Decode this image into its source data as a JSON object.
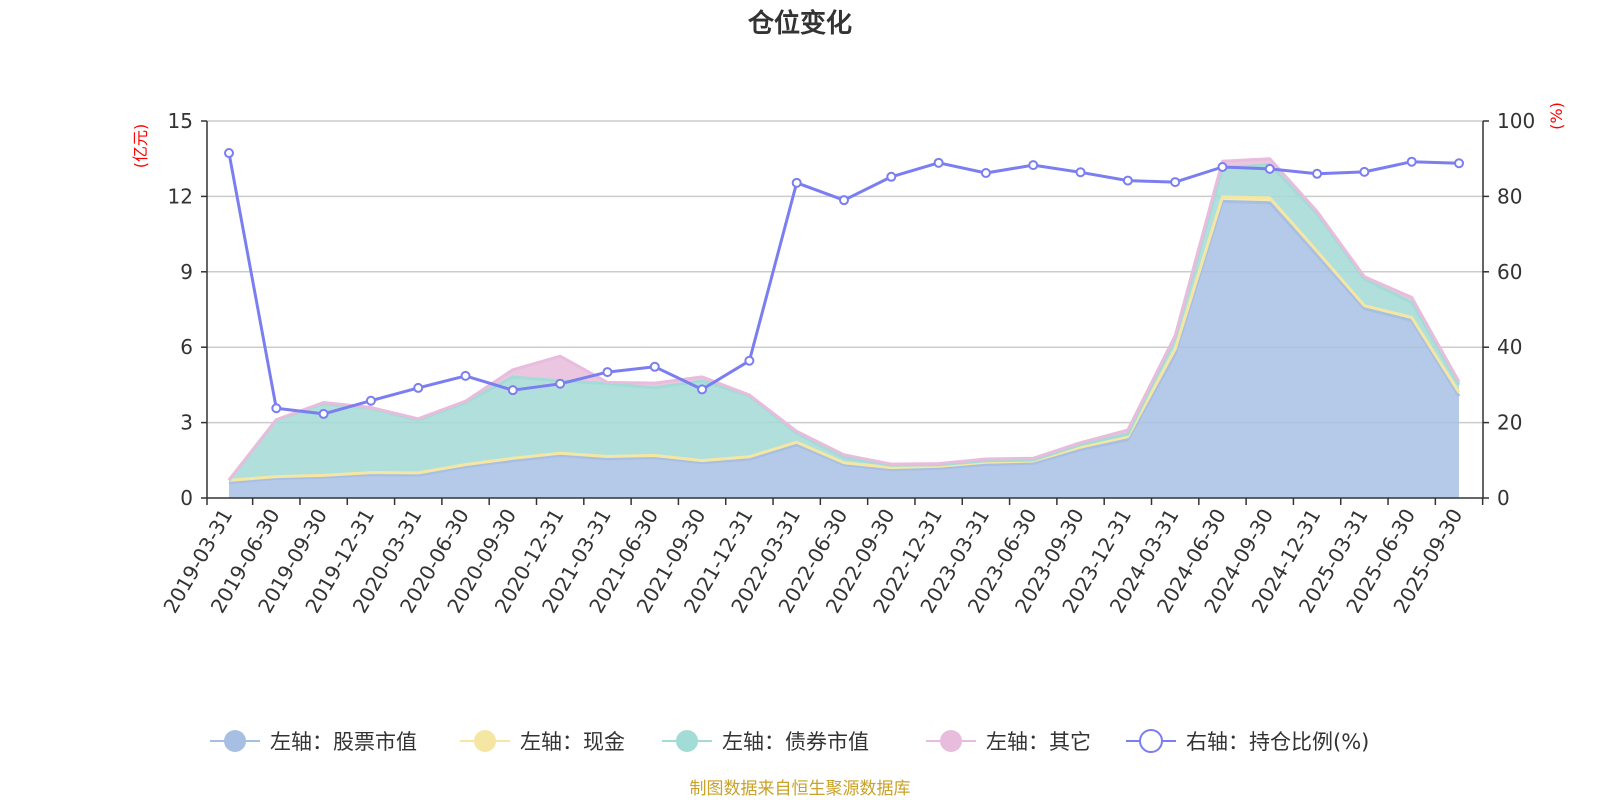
{
  "chart_data": {
    "type": "area",
    "title": "仓位变化",
    "left_unit": "(亿元)",
    "right_unit": "(%)",
    "left_axis": {
      "min": 0,
      "max": 15,
      "ticks": [
        "0",
        "3",
        "6",
        "9",
        "12",
        "15"
      ]
    },
    "right_axis": {
      "min": 0,
      "max": 100,
      "ticks": [
        "0",
        "20",
        "40",
        "60",
        "80",
        "100"
      ]
    },
    "grid": true,
    "legend_position": "bottom",
    "categories": [
      "2019-03-31",
      "2019-06-30",
      "2019-09-30",
      "2019-12-31",
      "2020-03-31",
      "2020-06-30",
      "2020-09-30",
      "2020-12-31",
      "2021-03-31",
      "2021-06-30",
      "2021-09-30",
      "2021-12-31",
      "2022-03-31",
      "2022-06-30",
      "2022-09-30",
      "2022-12-31",
      "2023-03-31",
      "2023-06-30",
      "2023-09-30",
      "2023-12-31",
      "2024-03-31",
      "2024-06-30",
      "2024-09-30",
      "2024-12-31",
      "2025-03-31",
      "2025-06-30",
      "2025-09-30"
    ],
    "series": [
      {
        "name": "左轴：股票市值",
        "axis": "left",
        "kind": "stack",
        "color": "#a8bfe4",
        "values": [
          0.62,
          0.78,
          0.83,
          0.93,
          0.91,
          1.25,
          1.48,
          1.69,
          1.56,
          1.61,
          1.41,
          1.54,
          2.12,
          1.32,
          1.13,
          1.18,
          1.33,
          1.38,
          1.92,
          2.32,
          5.73,
          11.8,
          11.75,
          9.66,
          7.53,
          7.07,
          4.05
        ]
      },
      {
        "name": "左轴：现金",
        "axis": "left",
        "kind": "stack",
        "color": "#f5e6a3",
        "values": [
          0.08,
          0.07,
          0.07,
          0.08,
          0.09,
          0.08,
          0.1,
          0.09,
          0.09,
          0.08,
          0.08,
          0.1,
          0.1,
          0.08,
          0.08,
          0.08,
          0.09,
          0.09,
          0.1,
          0.12,
          0.2,
          0.18,
          0.19,
          0.15,
          0.12,
          0.11,
          0.15
        ]
      },
      {
        "name": "左轴：债券市值",
        "axis": "left",
        "kind": "stack",
        "color": "#a3dbd6",
        "values": [
          0,
          2.25,
          2.85,
          2.56,
          2.1,
          2.46,
          3.23,
          2.88,
          2.9,
          2.69,
          3.17,
          2.42,
          0.35,
          0.2,
          0.09,
          0.06,
          0.06,
          0.04,
          0.1,
          0.1,
          0.43,
          1.15,
          1.32,
          1.49,
          1.06,
          0.6,
          0.3
        ]
      },
      {
        "name": "左轴：其它",
        "axis": "left",
        "kind": "stack",
        "color": "#e8bcdc",
        "values": [
          0.02,
          0.02,
          0.05,
          0.03,
          0.05,
          0.06,
          0.29,
          0.98,
          0.05,
          0.19,
          0.16,
          0.04,
          0.08,
          0.12,
          0.05,
          0.05,
          0.07,
          0.07,
          0.08,
          0.16,
          0.1,
          0.27,
          0.24,
          0.1,
          0.09,
          0.2,
          0.12
        ]
      },
      {
        "name": "右轴：持仓比例(%)",
        "axis": "right",
        "kind": "line",
        "color": "#7b7ef0",
        "values": [
          91.5,
          23.8,
          22.3,
          25.8,
          29.2,
          32.4,
          28.6,
          30.3,
          33.4,
          34.8,
          28.8,
          36.4,
          83.6,
          79.0,
          85.2,
          88.9,
          86.2,
          88.3,
          86.4,
          84.2,
          83.8,
          87.8,
          87.3,
          86.0,
          86.5,
          89.2,
          88.8
        ]
      }
    ],
    "source_note": "制图数据来自恒生聚源数据库"
  }
}
